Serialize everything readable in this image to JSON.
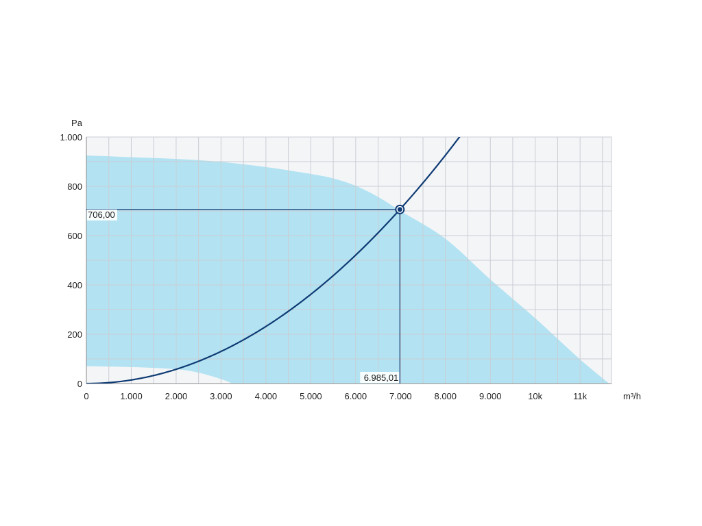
{
  "chart_data": {
    "type": "line",
    "title": "",
    "xlabel": "m³/h",
    "ylabel": "Pa",
    "xlim": [
      0,
      11700
    ],
    "ylim": [
      0,
      1000
    ],
    "x_ticks": [
      {
        "value": 0,
        "label": "0"
      },
      {
        "value": 1000,
        "label": "1.000"
      },
      {
        "value": 2000,
        "label": "2.000"
      },
      {
        "value": 3000,
        "label": "3.000"
      },
      {
        "value": 4000,
        "label": "4.000"
      },
      {
        "value": 5000,
        "label": "5.000"
      },
      {
        "value": 6000,
        "label": "6.000"
      },
      {
        "value": 7000,
        "label": "7.000"
      },
      {
        "value": 8000,
        "label": "8.000"
      },
      {
        "value": 9000,
        "label": "9.000"
      },
      {
        "value": 10000,
        "label": "10k"
      },
      {
        "value": 11000,
        "label": "11k"
      }
    ],
    "x_minor_ticks": [
      500,
      1500,
      2500,
      3500,
      4500,
      5500,
      6500,
      7500,
      8500,
      9500,
      10500,
      11500
    ],
    "y_ticks": [
      {
        "value": 0,
        "label": "0"
      },
      {
        "value": 200,
        "label": "200"
      },
      {
        "value": 400,
        "label": "400"
      },
      {
        "value": 600,
        "label": "600"
      },
      {
        "value": 800,
        "label": "800"
      },
      {
        "value": 1000,
        "label": "1.000"
      }
    ],
    "y_minor_ticks": [
      100,
      300,
      500,
      700,
      900
    ],
    "grid": true,
    "operating_range": {
      "upper": [
        [
          0,
          925
        ],
        [
          1000,
          918
        ],
        [
          2000,
          911
        ],
        [
          3000,
          899
        ],
        [
          4000,
          878
        ],
        [
          5000,
          850
        ],
        [
          5500,
          832
        ],
        [
          6000,
          802
        ],
        [
          6500,
          757
        ],
        [
          7000,
          700
        ],
        [
          8000,
          587
        ],
        [
          9000,
          422
        ],
        [
          10000,
          265
        ],
        [
          11000,
          98
        ],
        [
          11650,
          0
        ]
      ],
      "lower": [
        [
          0,
          70
        ],
        [
          1000,
          67
        ],
        [
          2000,
          58
        ],
        [
          2500,
          44
        ],
        [
          3000,
          18
        ],
        [
          3250,
          0
        ]
      ],
      "color": "#b3e3f2"
    },
    "system_curve": {
      "formula": "p = 706 * (q / 6985.01)^2",
      "coefficient": 706,
      "reference_flow": 6985.01,
      "x_end": 8400,
      "color": "#0e3b74"
    },
    "operating_point": {
      "x": 6985.01,
      "y": 706.0,
      "x_label": "6.985,01",
      "y_label": "706,00",
      "color": "#0e3b74"
    },
    "background_color": "#f4f5f7",
    "grid_color": "#c9cdd4"
  }
}
